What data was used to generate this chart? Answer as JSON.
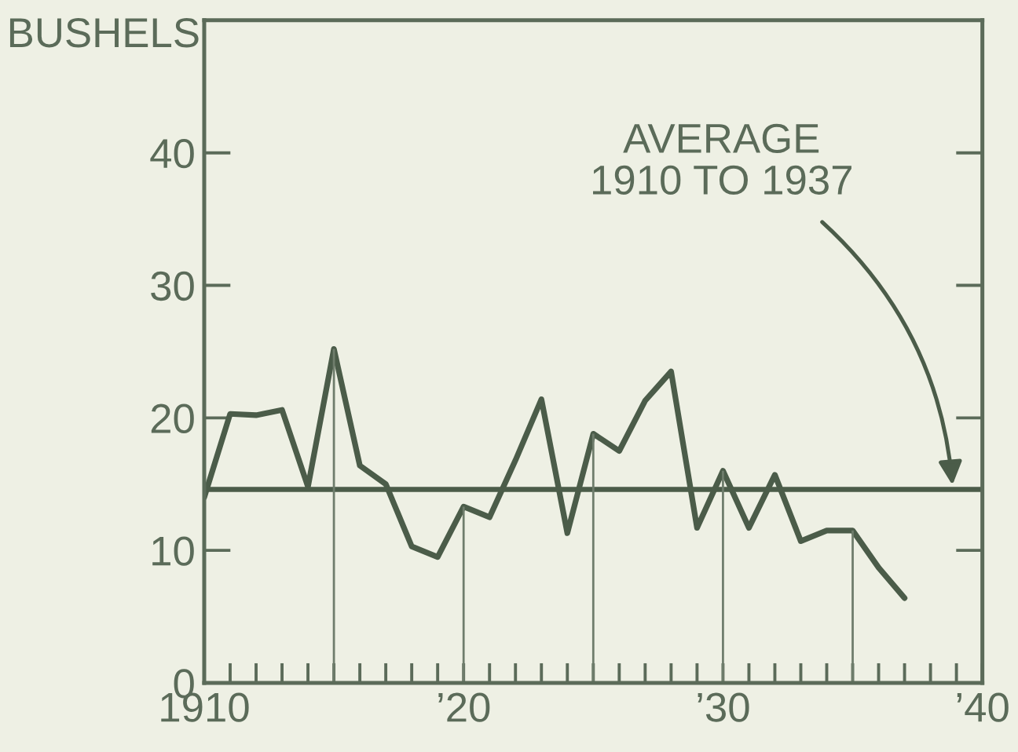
{
  "chart_data": {
    "type": "line",
    "ylabel": "BUSHELS",
    "x": [
      1910,
      1911,
      1912,
      1913,
      1914,
      1915,
      1916,
      1917,
      1918,
      1919,
      1920,
      1921,
      1922,
      1923,
      1924,
      1925,
      1926,
      1927,
      1928,
      1929,
      1930,
      1931,
      1932,
      1933,
      1934,
      1935,
      1936,
      1937
    ],
    "series": [
      {
        "color": "#4b5c49",
        "values": [
          14,
          20.3,
          20.2,
          20.6,
          14.8,
          25.2,
          16.4,
          15,
          10.3,
          9.5,
          13.3,
          12.5,
          16.8,
          21.4,
          11.3,
          18.8,
          17.5,
          21.3,
          23.5,
          11.7,
          16,
          11.7,
          15.7,
          10.7,
          11.5,
          11.5,
          8.7,
          6.4
        ]
      }
    ],
    "xlim": [
      1910,
      1940
    ],
    "ylim": [
      0,
      50
    ],
    "xticks": [
      {
        "value": 1910,
        "label": "1910"
      },
      {
        "value": 1911,
        "label": null
      },
      {
        "value": 1912,
        "label": null
      },
      {
        "value": 1913,
        "label": null
      },
      {
        "value": 1914,
        "label": null
      },
      {
        "value": 1915,
        "label": null
      },
      {
        "value": 1916,
        "label": null
      },
      {
        "value": 1917,
        "label": null
      },
      {
        "value": 1918,
        "label": null
      },
      {
        "value": 1919,
        "label": null
      },
      {
        "value": 1920,
        "label": "’20"
      },
      {
        "value": 1921,
        "label": null
      },
      {
        "value": 1922,
        "label": null
      },
      {
        "value": 1923,
        "label": null
      },
      {
        "value": 1924,
        "label": null
      },
      {
        "value": 1925,
        "label": null
      },
      {
        "value": 1926,
        "label": null
      },
      {
        "value": 1927,
        "label": null
      },
      {
        "value": 1928,
        "label": null
      },
      {
        "value": 1929,
        "label": null
      },
      {
        "value": 1930,
        "label": "’30"
      },
      {
        "value": 1931,
        "label": null
      },
      {
        "value": 1932,
        "label": null
      },
      {
        "value": 1933,
        "label": null
      },
      {
        "value": 1934,
        "label": null
      },
      {
        "value": 1935,
        "label": null
      },
      {
        "value": 1936,
        "label": null
      },
      {
        "value": 1937,
        "label": null
      },
      {
        "value": 1938,
        "label": null
      },
      {
        "value": 1939,
        "label": null
      },
      {
        "value": 1940,
        "label": "’40"
      }
    ],
    "yticks": [
      0,
      10,
      20,
      30,
      40
    ],
    "ref_lines": [
      {
        "axis": "y",
        "value": 14.6,
        "label": "AVERAGE\n1910 TO 1937",
        "color": "#4b5c49"
      },
      {
        "axis": "x",
        "value": 1915,
        "color": "#6f7d6c"
      },
      {
        "axis": "x",
        "value": 1920,
        "color": "#6f7d6c"
      },
      {
        "axis": "x",
        "value": 1925,
        "color": "#6f7d6c"
      },
      {
        "axis": "x",
        "value": 1930,
        "color": "#6f7d6c"
      },
      {
        "axis": "x",
        "value": 1935,
        "color": "#6f7d6c"
      }
    ],
    "grid": false,
    "legend": false,
    "marker": "none",
    "line_style": "solid"
  }
}
